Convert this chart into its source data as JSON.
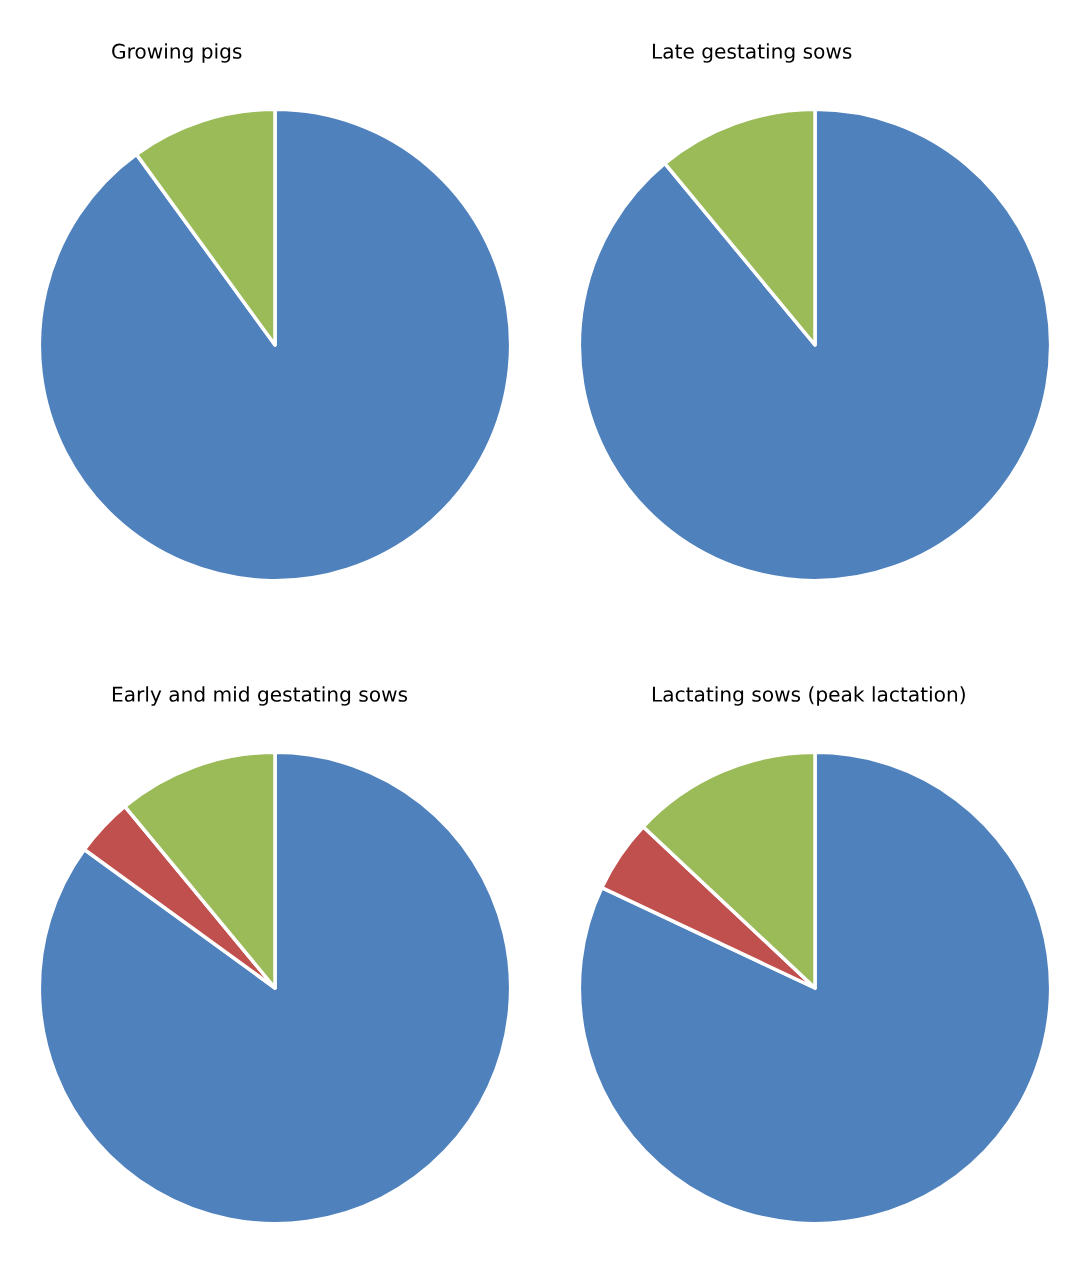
{
  "chart_data": [
    {
      "type": "pie",
      "title": "Growing pigs",
      "categories": [
        null,
        null
      ],
      "values": [
        90,
        10
      ],
      "colors": [
        "#4f81bd",
        "#9bbb59"
      ]
    },
    {
      "type": "pie",
      "title": "Late gestating sows",
      "categories": [
        null,
        null
      ],
      "values": [
        89,
        11
      ],
      "colors": [
        "#4f81bd",
        "#9bbb59"
      ]
    },
    {
      "type": "pie",
      "title": "Early and mid gestating sows",
      "categories": [
        null,
        null,
        null
      ],
      "values": [
        85,
        4,
        11
      ],
      "colors": [
        "#4f81bd",
        "#c0504d",
        "#9bbb59"
      ]
    },
    {
      "type": "pie",
      "title": "Lactating sows (peak lactation)",
      "categories": [
        null,
        null,
        null
      ],
      "values": [
        82,
        5,
        13
      ],
      "colors": [
        "#4f81bd",
        "#c0504d",
        "#9bbb59"
      ]
    }
  ]
}
